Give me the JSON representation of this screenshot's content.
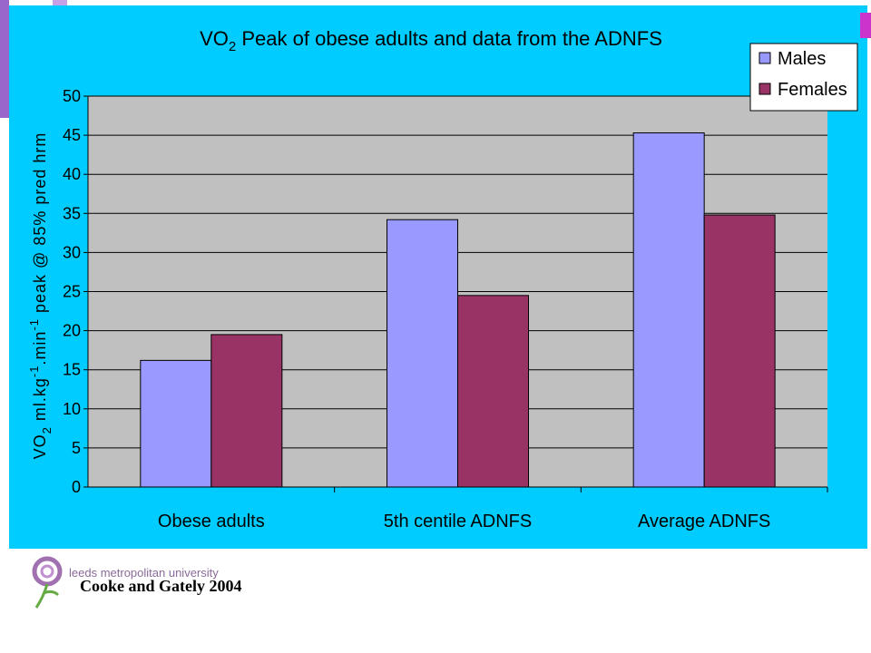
{
  "chart_data": {
    "type": "bar",
    "title_main": "VO",
    "title_sub": "2",
    "title_rest": " Peak of obese adults and data from the ADNFS",
    "ylabel_parts": [
      "VO",
      "2",
      " ml.kg",
      "-1",
      ".min",
      "-1",
      " peak @ 85% pred hrm"
    ],
    "categories": [
      "Obese adults",
      "5th centile ADNFS",
      "Average ADNFS"
    ],
    "series": [
      {
        "name": "Males",
        "color": "#9999ff",
        "values": [
          16.2,
          34.2,
          45.3
        ]
      },
      {
        "name": "Females",
        "color": "#993366",
        "values": [
          19.5,
          24.5,
          34.8
        ]
      }
    ],
    "ylim": [
      0,
      50
    ],
    "yticks": [
      0,
      5,
      10,
      15,
      20,
      25,
      30,
      35,
      40,
      45,
      50
    ],
    "grid": true,
    "legend_position": "top-right",
    "plot_background": "#c0c0c0",
    "panel_background": "#00ccff"
  },
  "footer": {
    "credit": "Cooke and Gately 2004",
    "logo_text": "leeds metropolitan university"
  }
}
